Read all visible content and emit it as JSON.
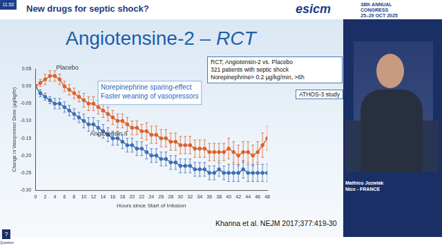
{
  "slide": {
    "clock": "11:52",
    "header": "New drugs for septic shock?",
    "logo": "esicm",
    "congress": [
      "38th ANNUAL",
      "CONGRESS",
      "25–29 OCT 2025"
    ],
    "title": [
      "Angiotensine-2 –",
      "RCT"
    ],
    "study_box": [
      "RCT, Angiotensin-2 vs. Placebo",
      "321 patients with septic shock",
      "Norepinephrine> 0.2 µg/kg/min, >6h"
    ],
    "study_name": "ATHOS-3 study",
    "citation": "Khanna et al. NEJM 2017;377:419-30",
    "speaker": "Mathieu Jozwiak",
    "speaker_location": "Nice - FRANCE",
    "question": "Question"
  },
  "chart_data": {
    "type": "line",
    "x_label": "Hours since Start of Infusion",
    "y_label": "Change in Vasopressor Dose (µg/kg/hr)",
    "annotations": [
      "Norepinephrine sparing-effect",
      "Faster weaning of vasopressors"
    ],
    "x": [
      0,
      1,
      2,
      3,
      4,
      5,
      6,
      7,
      8,
      9,
      10,
      11,
      12,
      13,
      14,
      15,
      16,
      17,
      18,
      19,
      20,
      21,
      22,
      23,
      24,
      25,
      26,
      27,
      28,
      29,
      30,
      31,
      32,
      33,
      34,
      35,
      36,
      37,
      38,
      39,
      40,
      41,
      42,
      43,
      44,
      45,
      46,
      47,
      48
    ],
    "series": [
      {
        "name": "Placebo",
        "color": "#e0612a",
        "marker": "circle",
        "values": [
          0.0,
          0.01,
          0.02,
          0.03,
          0.03,
          0.02,
          0.0,
          -0.01,
          -0.02,
          -0.03,
          -0.04,
          -0.05,
          -0.05,
          -0.06,
          -0.07,
          -0.08,
          -0.09,
          -0.1,
          -0.1,
          -0.11,
          -0.12,
          -0.12,
          -0.13,
          -0.13,
          -0.14,
          -0.14,
          -0.15,
          -0.15,
          -0.16,
          -0.16,
          -0.17,
          -0.17,
          -0.17,
          -0.18,
          -0.18,
          -0.18,
          -0.19,
          -0.19,
          -0.19,
          -0.19,
          -0.18,
          -0.19,
          -0.2,
          -0.19,
          -0.19,
          -0.2,
          -0.19,
          -0.17,
          -0.15
        ],
        "errors": [
          0.005,
          0.01,
          0.015,
          0.015,
          0.015,
          0.015,
          0.015,
          0.015,
          0.015,
          0.015,
          0.02,
          0.02,
          0.02,
          0.02,
          0.02,
          0.02,
          0.02,
          0.02,
          0.02,
          0.02,
          0.02,
          0.02,
          0.02,
          0.025,
          0.025,
          0.025,
          0.025,
          0.025,
          0.025,
          0.025,
          0.025,
          0.025,
          0.025,
          0.025,
          0.025,
          0.025,
          0.025,
          0.025,
          0.025,
          0.025,
          0.03,
          0.03,
          0.03,
          0.03,
          0.03,
          0.03,
          0.03,
          0.035,
          0.035
        ]
      },
      {
        "name": "Angiotensin II",
        "color": "#3f6fb5",
        "marker": "circle",
        "values": [
          0.0,
          -0.02,
          -0.03,
          -0.04,
          -0.05,
          -0.05,
          -0.06,
          -0.07,
          -0.08,
          -0.09,
          -0.1,
          -0.11,
          -0.11,
          -0.12,
          -0.13,
          -0.14,
          -0.15,
          -0.15,
          -0.16,
          -0.17,
          -0.17,
          -0.18,
          -0.18,
          -0.19,
          -0.2,
          -0.2,
          -0.21,
          -0.21,
          -0.22,
          -0.22,
          -0.23,
          -0.23,
          -0.23,
          -0.24,
          -0.24,
          -0.24,
          -0.25,
          -0.25,
          -0.24,
          -0.25,
          -0.25,
          -0.25,
          -0.25,
          -0.24,
          -0.25,
          -0.25,
          -0.25,
          -0.25,
          -0.25
        ],
        "errors": [
          0.005,
          0.01,
          0.01,
          0.01,
          0.015,
          0.015,
          0.015,
          0.015,
          0.015,
          0.015,
          0.02,
          0.02,
          0.02,
          0.02,
          0.02,
          0.02,
          0.02,
          0.02,
          0.02,
          0.02,
          0.02,
          0.02,
          0.02,
          0.02,
          0.02,
          0.02,
          0.02,
          0.02,
          0.02,
          0.02,
          0.02,
          0.02,
          0.02,
          0.02,
          0.02,
          0.02,
          0.02,
          0.02,
          0.02,
          0.02,
          0.025,
          0.025,
          0.025,
          0.025,
          0.025,
          0.025,
          0.025,
          0.025,
          0.025
        ]
      }
    ],
    "xlim": [
      0,
      48
    ],
    "xticks": [
      0,
      2,
      4,
      6,
      8,
      10,
      12,
      14,
      16,
      18,
      20,
      22,
      24,
      26,
      28,
      30,
      32,
      34,
      36,
      38,
      40,
      42,
      44,
      46,
      48
    ],
    "ylim": [
      -0.3,
      0.05
    ],
    "yticks": [
      0.05,
      {
        "value": 0,
        "label": "0.00"
      },
      -0.05,
      {
        "value": -0.1,
        "label": "-0.10"
      },
      -0.15,
      {
        "value": -0.2,
        "label": "-0.20"
      },
      -0.25,
      {
        "value": -0.3,
        "label": "-0.30"
      }
    ],
    "grid": false,
    "legend": "none"
  }
}
